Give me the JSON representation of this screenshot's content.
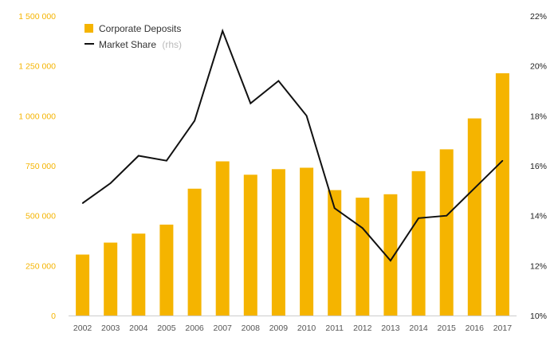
{
  "chart_data": {
    "type": "bar",
    "categories": [
      "2002",
      "2003",
      "2004",
      "2005",
      "2006",
      "2007",
      "2008",
      "2009",
      "2010",
      "2011",
      "2012",
      "2013",
      "2014",
      "2015",
      "2016",
      "2017"
    ],
    "series": [
      {
        "name": "Corporate Deposits",
        "type": "bar",
        "axis": "left",
        "color": "#f5b400",
        "values": [
          305000,
          365000,
          410000,
          455000,
          635000,
          772000,
          705000,
          733000,
          740000,
          628000,
          590000,
          607000,
          723000,
          832000,
          987000,
          1213000
        ]
      },
      {
        "name": "Market Share",
        "type": "line",
        "axis": "right",
        "color": "#111111",
        "values": [
          14.5,
          15.3,
          16.4,
          16.2,
          17.8,
          21.4,
          18.5,
          19.4,
          18.0,
          14.3,
          13.5,
          12.2,
          13.9,
          14.0,
          15.1,
          16.2
        ]
      }
    ],
    "legend": {
      "position": "top-left",
      "items": [
        {
          "label": "Corporate Deposits",
          "suffix": "",
          "color": "#f5b400",
          "marker": "square"
        },
        {
          "label": "Market Share",
          "suffix": "(rhs)",
          "color": "#111111",
          "marker": "line"
        }
      ]
    },
    "y_left": {
      "ylim": [
        0,
        1500000
      ],
      "ticks": [
        0,
        250000,
        500000,
        750000,
        1000000,
        1250000,
        1500000
      ],
      "tick_labels": [
        "0",
        "250 000",
        "500 000",
        "750 000",
        "1 000 000",
        "1 250 000",
        "1 500 000"
      ],
      "color": "#f5b400"
    },
    "y_right": {
      "ylim": [
        10,
        22
      ],
      "ticks": [
        10,
        12,
        14,
        16,
        18,
        20,
        22
      ],
      "tick_labels": [
        "10%",
        "12%",
        "14%",
        "16%",
        "18%",
        "20%",
        "22%"
      ],
      "color": "#222222"
    },
    "title": "",
    "xlabel": "",
    "ylabel": "",
    "grid": false
  }
}
